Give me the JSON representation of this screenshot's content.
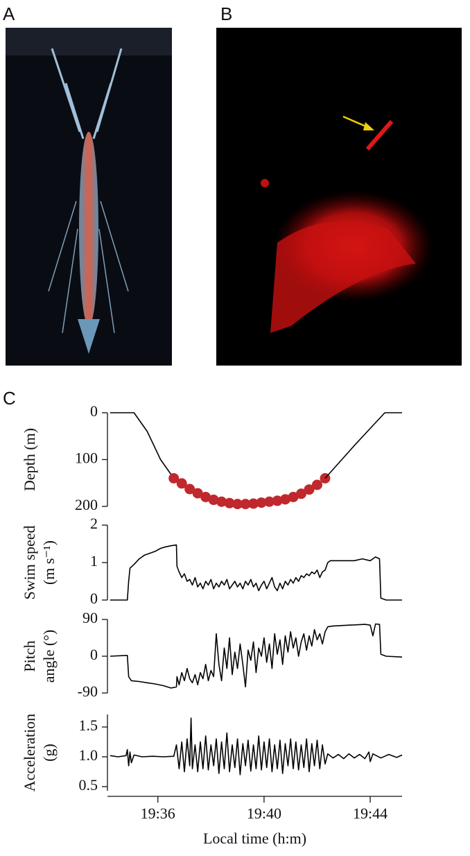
{
  "panel_labels": [
    "A",
    "B",
    "C"
  ],
  "chart_data": [
    {
      "type": "line",
      "ylabel": [
        "Depth (m)"
      ],
      "ylim": [
        0,
        200
      ],
      "invert_y": true,
      "yticks": [
        0,
        100,
        200
      ],
      "xlim": [
        1174.1,
        1185.2
      ],
      "series": [
        {
          "style": "line",
          "color": "#000000",
          "x": [
            1174.2,
            1175.1,
            1175.6,
            1176.1,
            1176.6
          ],
          "values": [
            0,
            0,
            40,
            100,
            140
          ]
        },
        {
          "style": "markers",
          "color": "#c0282d",
          "x": [
            1176.6,
            1176.9,
            1177.2,
            1177.5,
            1177.8,
            1178.1,
            1178.4,
            1178.7,
            1179.0,
            1179.3,
            1179.6,
            1179.9,
            1180.2,
            1180.5,
            1180.8,
            1181.1,
            1181.4,
            1181.7,
            1182.0,
            1182.3
          ],
          "values": [
            140,
            151,
            163,
            172,
            180,
            186,
            190,
            193,
            195,
            195,
            194,
            192,
            190,
            188,
            185,
            180,
            173,
            164,
            154,
            140
          ]
        },
        {
          "style": "line",
          "color": "#000000",
          "x": [
            1182.3,
            1183.4,
            1184.55,
            1185.2
          ],
          "values": [
            140,
            70,
            0,
            0
          ]
        }
      ]
    },
    {
      "type": "line",
      "ylabel": [
        "Swim speed",
        "(m s⁻¹)"
      ],
      "ylim": [
        0,
        2
      ],
      "yticks": [
        0,
        1,
        2
      ],
      "xlim": [
        1174.1,
        1185.2
      ],
      "series": [
        {
          "style": "line",
          "color": "#000000",
          "x": [
            1174.2,
            1174.85,
            1174.9,
            1174.95,
            1175.1,
            1175.3,
            1175.5,
            1175.7,
            1175.9,
            1176.1,
            1176.3,
            1176.5,
            1176.7,
            1176.72,
            1176.8,
            1176.9,
            1177.0,
            1177.1,
            1177.2,
            1177.3,
            1177.4,
            1177.5,
            1177.6,
            1177.7,
            1177.8,
            1177.9,
            1178.0,
            1178.1,
            1178.2,
            1178.3,
            1178.4,
            1178.5,
            1178.6,
            1178.7,
            1178.8,
            1178.9,
            1179.0,
            1179.1,
            1179.2,
            1179.3,
            1179.4,
            1179.5,
            1179.6,
            1179.7,
            1179.8,
            1179.9,
            1180.0,
            1180.1,
            1180.2,
            1180.3,
            1180.4,
            1180.5,
            1180.6,
            1180.7,
            1180.8,
            1180.9,
            1181.0,
            1181.1,
            1181.2,
            1181.3,
            1181.4,
            1181.5,
            1181.6,
            1181.7,
            1181.8,
            1181.9,
            1182.0,
            1182.1,
            1182.2,
            1182.3,
            1182.4,
            1182.5,
            1182.8,
            1183.1,
            1183.4,
            1183.7,
            1184.0,
            1184.2,
            1184.35,
            1184.4,
            1184.6,
            1185.2
          ],
          "values": [
            0,
            0,
            0.5,
            0.85,
            0.95,
            1.1,
            1.2,
            1.25,
            1.3,
            1.38,
            1.42,
            1.45,
            1.47,
            0.9,
            0.75,
            0.6,
            0.7,
            0.5,
            0.55,
            0.4,
            0.6,
            0.35,
            0.45,
            0.3,
            0.5,
            0.4,
            0.55,
            0.3,
            0.45,
            0.35,
            0.5,
            0.4,
            0.55,
            0.3,
            0.4,
            0.5,
            0.35,
            0.45,
            0.3,
            0.5,
            0.4,
            0.55,
            0.35,
            0.45,
            0.25,
            0.4,
            0.5,
            0.3,
            0.45,
            0.6,
            0.35,
            0.25,
            0.45,
            0.3,
            0.5,
            0.4,
            0.55,
            0.45,
            0.6,
            0.5,
            0.65,
            0.6,
            0.7,
            0.65,
            0.75,
            0.7,
            0.8,
            0.6,
            0.75,
            0.8,
            1.0,
            1.05,
            1.05,
            1.05,
            1.05,
            1.1,
            1.05,
            1.15,
            1.1,
            0.05,
            0,
            0
          ]
        }
      ]
    },
    {
      "type": "line",
      "ylabel": [
        "Pitch",
        "angle (°)"
      ],
      "ylim": [
        -90,
        90
      ],
      "yticks": [
        -90,
        0,
        90
      ],
      "xlim": [
        1174.1,
        1185.2
      ],
      "series": [
        {
          "style": "line",
          "color": "#000000",
          "x": [
            1174.2,
            1174.85,
            1174.9,
            1175.0,
            1175.3,
            1175.6,
            1175.9,
            1176.2,
            1176.5,
            1176.7,
            1176.72,
            1176.8,
            1176.9,
            1177.0,
            1177.1,
            1177.2,
            1177.3,
            1177.4,
            1177.5,
            1177.6,
            1177.7,
            1177.8,
            1177.9,
            1178.0,
            1178.1,
            1178.2,
            1178.3,
            1178.4,
            1178.5,
            1178.6,
            1178.7,
            1178.8,
            1178.9,
            1179.0,
            1179.1,
            1179.2,
            1179.3,
            1179.4,
            1179.5,
            1179.6,
            1179.7,
            1179.8,
            1179.9,
            1180.0,
            1180.1,
            1180.2,
            1180.3,
            1180.4,
            1180.5,
            1180.6,
            1180.7,
            1180.8,
            1180.9,
            1181.0,
            1181.1,
            1181.2,
            1181.3,
            1181.4,
            1181.5,
            1181.6,
            1181.7,
            1181.8,
            1181.9,
            1182.0,
            1182.1,
            1182.2,
            1182.3,
            1182.4,
            1182.6,
            1182.9,
            1183.2,
            1183.5,
            1183.8,
            1184.0,
            1184.1,
            1184.2,
            1184.35,
            1184.4,
            1184.6,
            1185.2
          ],
          "values": [
            0,
            2,
            -50,
            -60,
            -62,
            -65,
            -68,
            -72,
            -78,
            -75,
            -50,
            -70,
            -40,
            -60,
            -30,
            -55,
            -65,
            -45,
            -70,
            -40,
            -55,
            -20,
            -60,
            -35,
            -50,
            55,
            -20,
            -60,
            20,
            -30,
            45,
            -45,
            10,
            -30,
            30,
            -20,
            -75,
            15,
            -10,
            35,
            -40,
            20,
            0,
            45,
            -15,
            30,
            -30,
            55,
            5,
            40,
            -20,
            50,
            10,
            60,
            20,
            45,
            0,
            35,
            55,
            15,
            50,
            25,
            65,
            40,
            55,
            30,
            60,
            72,
            74,
            75,
            76,
            77,
            78,
            76,
            50,
            79,
            78,
            5,
            0,
            -2
          ]
        }
      ]
    },
    {
      "type": "line",
      "ylabel": [
        "Acceleration",
        "(g)"
      ],
      "ylim": [
        0.43,
        1.71
      ],
      "yticks": [
        {
          "value": 0.5,
          "label": "0.5"
        },
        {
          "value": 1,
          "label": "1.0"
        },
        {
          "value": 1.5,
          "label": "1.5"
        }
      ],
      "xlim": [
        1174.1,
        1185.2
      ],
      "xticks": [
        {
          "value": 1176,
          "label": "19:36"
        },
        {
          "value": 1180,
          "label": "19:40"
        },
        {
          "value": 1184,
          "label": "19:44"
        }
      ],
      "xlabel": "Local time (h:m)",
      "series": [
        {
          "style": "line",
          "color": "#000000",
          "x": [
            1174.2,
            1174.5,
            1174.8,
            1174.85,
            1174.9,
            1174.95,
            1175.0,
            1175.1,
            1175.4,
            1175.8,
            1176.2,
            1176.6,
            1176.7,
            1176.8,
            1176.9,
            1177.0,
            1177.1,
            1177.2,
            1177.25,
            1177.3,
            1177.4,
            1177.5,
            1177.6,
            1177.7,
            1177.8,
            1177.9,
            1178.0,
            1178.1,
            1178.2,
            1178.3,
            1178.4,
            1178.5,
            1178.6,
            1178.7,
            1178.8,
            1178.9,
            1179.0,
            1179.1,
            1179.2,
            1179.3,
            1179.4,
            1179.5,
            1179.6,
            1179.7,
            1179.8,
            1179.9,
            1180.0,
            1180.1,
            1180.2,
            1180.3,
            1180.4,
            1180.5,
            1180.6,
            1180.7,
            1180.8,
            1180.9,
            1181.0,
            1181.1,
            1181.2,
            1181.3,
            1181.4,
            1181.5,
            1181.6,
            1181.7,
            1181.8,
            1181.9,
            1182.0,
            1182.1,
            1182.2,
            1182.3,
            1182.4,
            1182.6,
            1182.8,
            1183.0,
            1183.2,
            1183.4,
            1183.6,
            1183.8,
            1183.95,
            1184.0,
            1184.1,
            1184.4,
            1184.7,
            1185.0,
            1185.2
          ],
          "values": [
            1.02,
            1.0,
            1.02,
            1.12,
            0.85,
            1.08,
            0.9,
            1.03,
            1.0,
            1.01,
            1.0,
            1.01,
            1.2,
            0.8,
            1.25,
            0.75,
            1.3,
            0.85,
            1.65,
            0.8,
            1.2,
            0.75,
            1.25,
            0.8,
            1.35,
            0.78,
            1.2,
            0.85,
            1.3,
            0.72,
            1.25,
            0.8,
            1.4,
            0.75,
            1.2,
            0.82,
            1.3,
            0.7,
            1.22,
            0.85,
            1.28,
            0.76,
            1.2,
            0.8,
            1.35,
            0.78,
            1.25,
            0.82,
            1.3,
            0.75,
            1.2,
            0.8,
            1.28,
            0.72,
            1.22,
            0.85,
            1.3,
            0.8,
            1.25,
            0.78,
            1.2,
            0.82,
            1.3,
            0.75,
            1.22,
            0.85,
            1.28,
            0.8,
            1.2,
            0.88,
            1.05,
            0.98,
            1.04,
            0.97,
            1.05,
            0.98,
            1.04,
            0.97,
            1.08,
            0.92,
            1.05,
            0.98,
            1.04,
            0.99,
            1.03
          ]
        }
      ]
    }
  ]
}
